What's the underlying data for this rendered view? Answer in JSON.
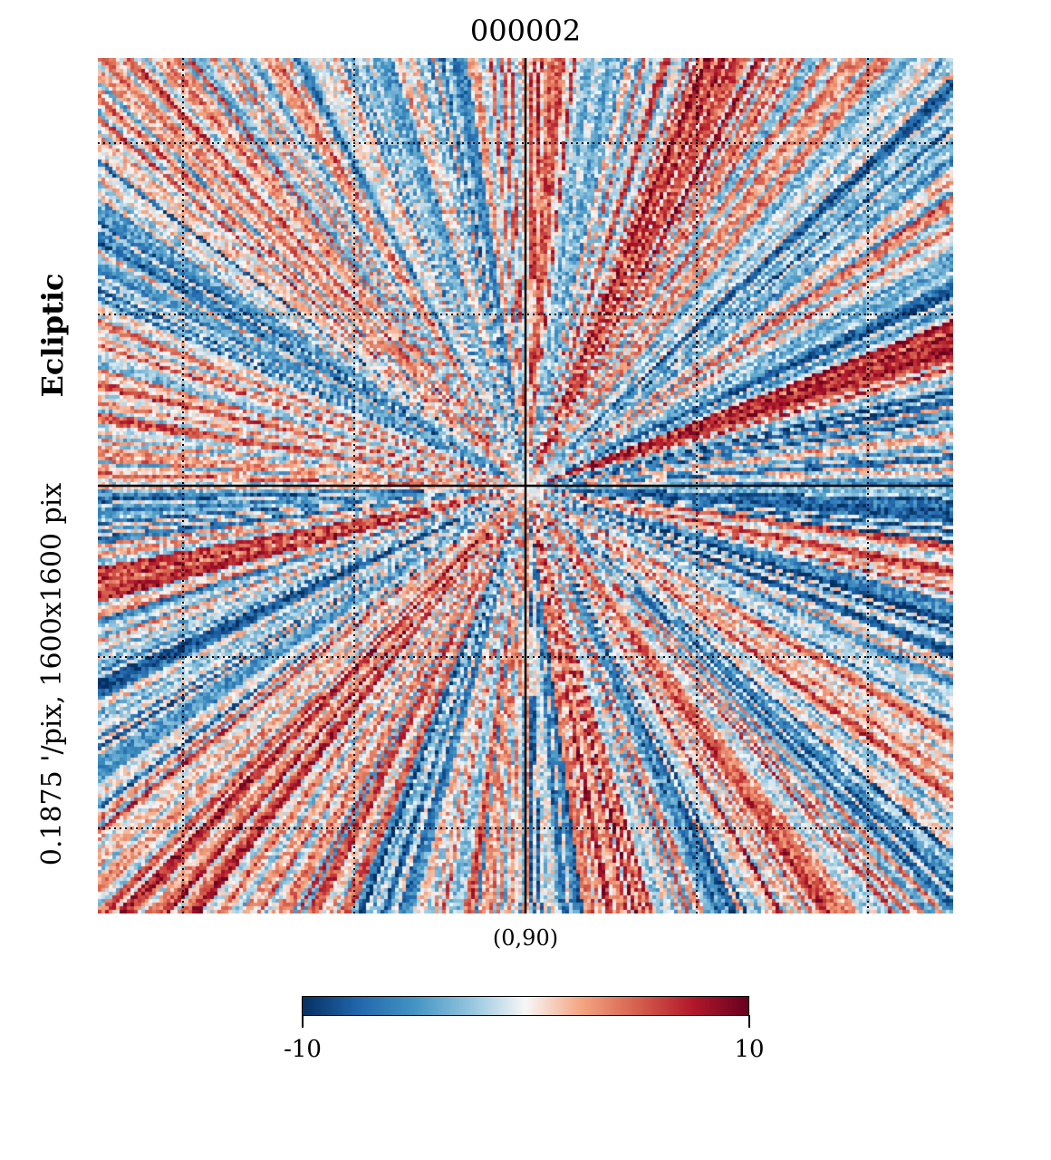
{
  "title": "000002",
  "coordinate_system": "Ecliptic",
  "resolution_label": "0.1875 '/pix,   1600x1600 pix",
  "center_label": "(0,90)",
  "colorbar": {
    "min_label": "-10",
    "max_label": "10",
    "min": -10,
    "max": 10,
    "colormap": "RdBu_r",
    "colors": [
      "#053061",
      "#2166ac",
      "#4393c3",
      "#92c5de",
      "#f7f7f7",
      "#f4a582",
      "#d6604d",
      "#b2182b",
      "#67001f"
    ]
  },
  "map": {
    "projection": "gnomonic",
    "center": [
      0,
      90
    ],
    "graticule": true,
    "pattern": "radial stripes converging at center"
  }
}
